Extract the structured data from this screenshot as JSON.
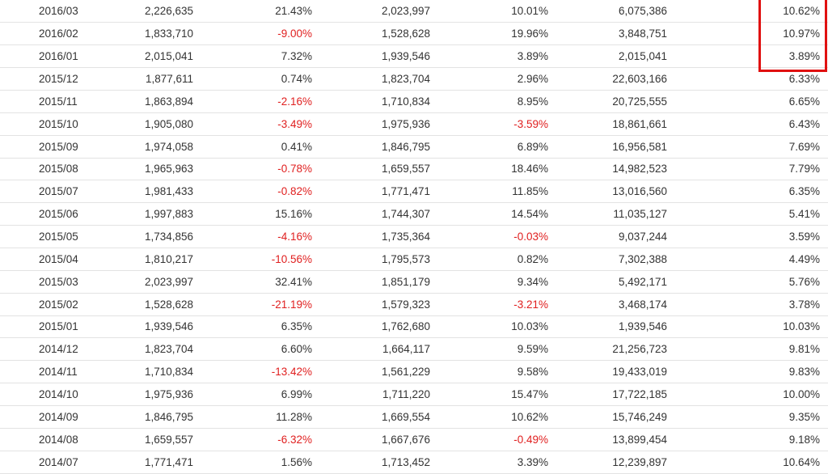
{
  "colors": {
    "negative": "#e02020",
    "text": "#333333",
    "highlight_box": "#e01010",
    "row_border": "#e3e3e3"
  },
  "rows": [
    [
      "2016/03",
      "2,226,635",
      "21.43%",
      "2,023,997",
      "10.01%",
      "6,075,386",
      "10.62%"
    ],
    [
      "2016/02",
      "1,833,710",
      "-9.00%",
      "1,528,628",
      "19.96%",
      "3,848,751",
      "10.97%"
    ],
    [
      "2016/01",
      "2,015,041",
      "7.32%",
      "1,939,546",
      "3.89%",
      "2,015,041",
      "3.89%"
    ],
    [
      "2015/12",
      "1,877,611",
      "0.74%",
      "1,823,704",
      "2.96%",
      "22,603,166",
      "6.33%"
    ],
    [
      "2015/11",
      "1,863,894",
      "-2.16%",
      "1,710,834",
      "8.95%",
      "20,725,555",
      "6.65%"
    ],
    [
      "2015/10",
      "1,905,080",
      "-3.49%",
      "1,975,936",
      "-3.59%",
      "18,861,661",
      "6.43%"
    ],
    [
      "2015/09",
      "1,974,058",
      "0.41%",
      "1,846,795",
      "6.89%",
      "16,956,581",
      "7.69%"
    ],
    [
      "2015/08",
      "1,965,963",
      "-0.78%",
      "1,659,557",
      "18.46%",
      "14,982,523",
      "7.79%"
    ],
    [
      "2015/07",
      "1,981,433",
      "-0.82%",
      "1,771,471",
      "11.85%",
      "13,016,560",
      "6.35%"
    ],
    [
      "2015/06",
      "1,997,883",
      "15.16%",
      "1,744,307",
      "14.54%",
      "11,035,127",
      "5.41%"
    ],
    [
      "2015/05",
      "1,734,856",
      "-4.16%",
      "1,735,364",
      "-0.03%",
      "9,037,244",
      "3.59%"
    ],
    [
      "2015/04",
      "1,810,217",
      "-10.56%",
      "1,795,573",
      "0.82%",
      "7,302,388",
      "4.49%"
    ],
    [
      "2015/03",
      "2,023,997",
      "32.41%",
      "1,851,179",
      "9.34%",
      "5,492,171",
      "5.76%"
    ],
    [
      "2015/02",
      "1,528,628",
      "-21.19%",
      "1,579,323",
      "-3.21%",
      "3,468,174",
      "3.78%"
    ],
    [
      "2015/01",
      "1,939,546",
      "6.35%",
      "1,762,680",
      "10.03%",
      "1,939,546",
      "10.03%"
    ],
    [
      "2014/12",
      "1,823,704",
      "6.60%",
      "1,664,117",
      "9.59%",
      "21,256,723",
      "9.81%"
    ],
    [
      "2014/11",
      "1,710,834",
      "-13.42%",
      "1,561,229",
      "9.58%",
      "19,433,019",
      "9.83%"
    ],
    [
      "2014/10",
      "1,975,936",
      "6.99%",
      "1,711,220",
      "15.47%",
      "17,722,185",
      "10.00%"
    ],
    [
      "2014/09",
      "1,846,795",
      "11.28%",
      "1,669,554",
      "10.62%",
      "15,746,249",
      "9.35%"
    ],
    [
      "2014/08",
      "1,659,557",
      "-6.32%",
      "1,667,676",
      "-0.49%",
      "13,899,454",
      "9.18%"
    ],
    [
      "2014/07",
      "1,771,471",
      "1.56%",
      "1,713,452",
      "3.39%",
      "12,239,897",
      "10.64%"
    ]
  ]
}
